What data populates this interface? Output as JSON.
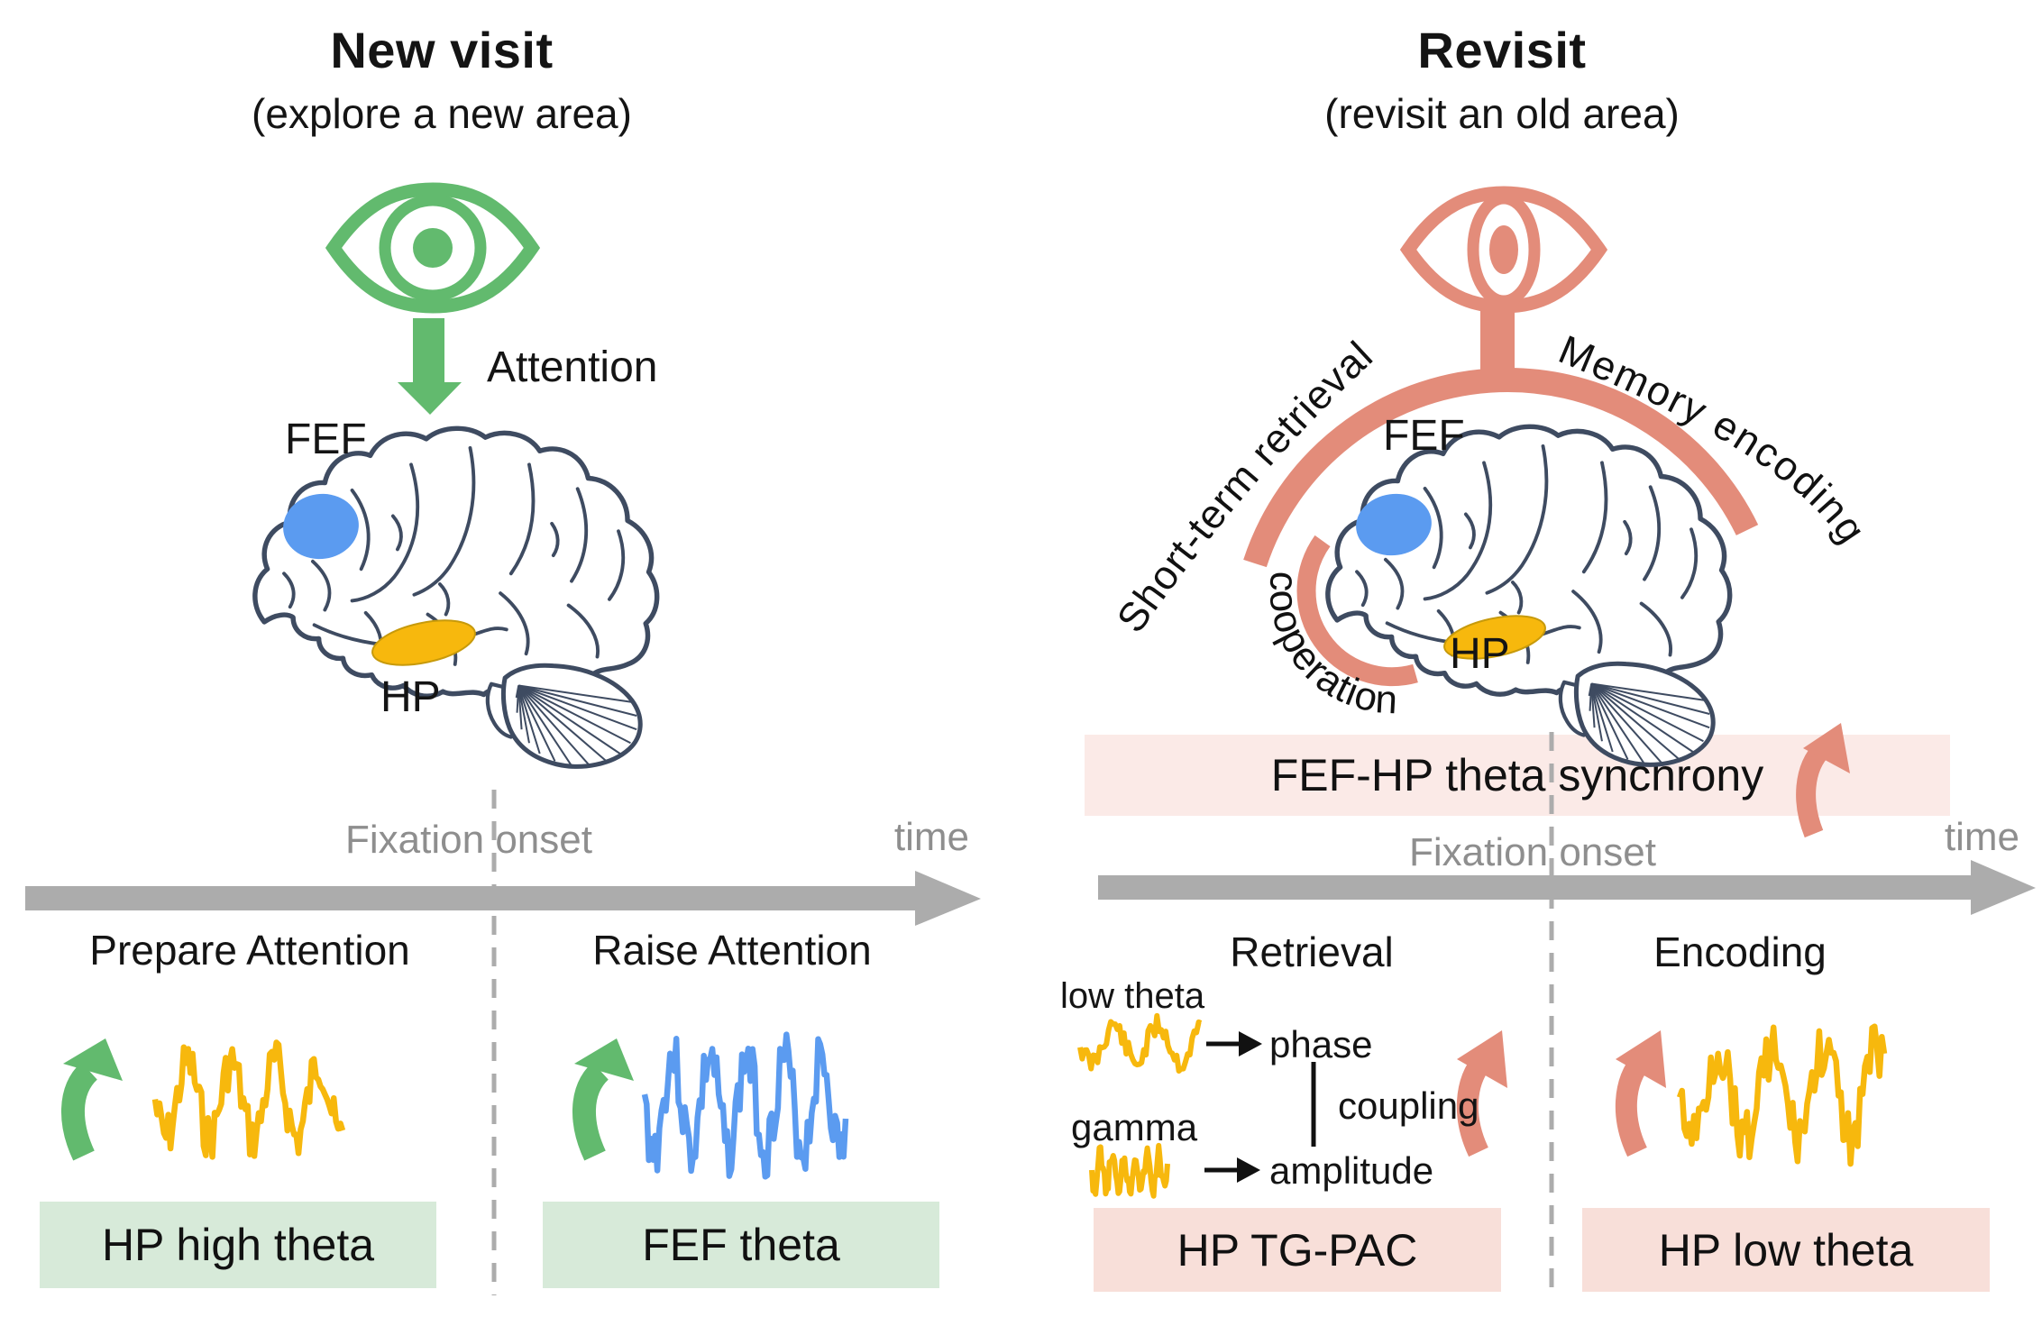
{
  "colors": {
    "green": "#62BA6E",
    "green-light": "#D7EAD9",
    "salmon": "#E38C7A",
    "pink-light": "#F8DFD9",
    "band-pink": "#FBEAE7",
    "yellow": "#F7B80D",
    "blue": "#5B9BF0",
    "gray-arrow": "#ACACAC",
    "gray-text": "#8E8E8E",
    "brain-line": "#3E4B61"
  },
  "left": {
    "title": "New visit",
    "subtitle": "(explore a new area)",
    "attention_label": "Attention",
    "fef_label": "FEF",
    "hp_label": "HP",
    "fixation_label": "Fixation onset",
    "time_label": "time",
    "phase_before": "Prepare Attention",
    "phase_after": "Raise Attention",
    "box_before": "HP high theta",
    "box_after": "FEF theta"
  },
  "right": {
    "title": "Revisit",
    "subtitle": "(revisit an old area)",
    "arc_left_label": "Short-term retrieval",
    "arc_right_label": "Memory encoding",
    "cooperation_label": "cooperation",
    "fef_label": "FEF",
    "hp_label": "HP",
    "synchrony_label": "FEF-HP theta synchrony",
    "fixation_label": "Fixation onset",
    "time_label": "time",
    "phase_before": "Retrieval",
    "phase_after": "Encoding",
    "low_theta_label": "low theta",
    "gamma_label": "gamma",
    "phase_word": "phase",
    "amplitude_word": "amplitude",
    "coupling_word": "coupling",
    "box_before": "HP TG-PAC",
    "box_after": "HP low theta"
  }
}
